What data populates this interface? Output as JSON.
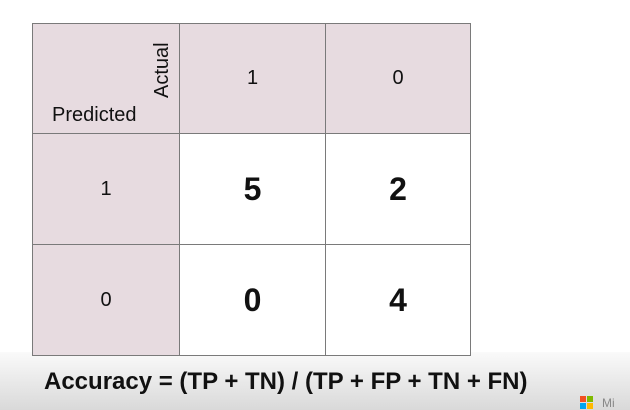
{
  "matrix": {
    "corner": {
      "actual_label": "Actual",
      "predicted_label": "Predicted"
    },
    "column_headers": [
      "1",
      "0"
    ],
    "rows": [
      {
        "label": "1",
        "values": [
          "5",
          "2"
        ]
      },
      {
        "label": "0",
        "values": [
          "0",
          "4"
        ]
      }
    ],
    "colors": {
      "header_fill": "#e7dbe0",
      "border": "#7a7a7a"
    }
  },
  "formula": "Accuracy = (TP + TN) / (TP + FP + TN + FN)",
  "logo": {
    "icon": "microsoft-logo-icon",
    "text": "Mi",
    "colors": [
      "#f25022",
      "#7fba00",
      "#00a4ef",
      "#ffb900"
    ]
  }
}
